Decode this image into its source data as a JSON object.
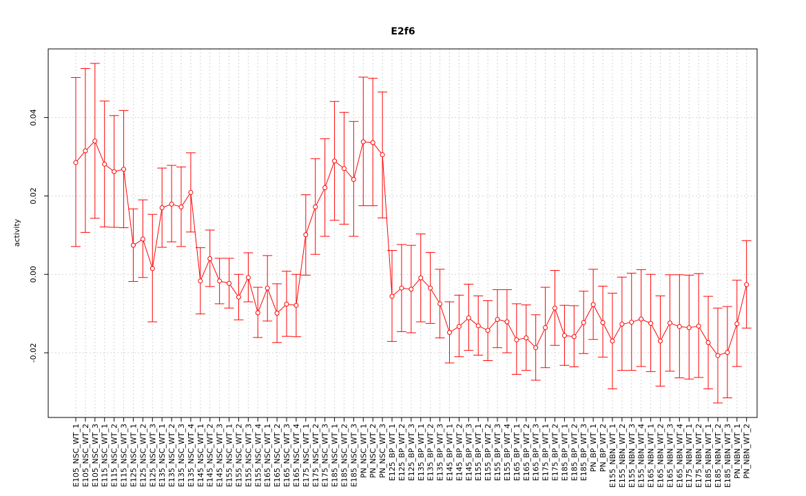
{
  "chart_data": {
    "type": "line",
    "title": "E2f6",
    "ylabel": "activity",
    "xlabel": "",
    "ylim": [
      -0.0365,
      0.0575
    ],
    "yticks": [
      -0.02,
      0.0,
      0.02,
      0.04
    ],
    "ytick_labels": [
      "-0.02",
      "0.00",
      "0.02",
      "0.04"
    ],
    "grid": true,
    "series_color": "#ff0000",
    "grid_color": "#d3d3d3",
    "categories": [
      "E105_NSC_WT_1",
      "E105_NSC_WT_2",
      "E105_NSC_WT_3",
      "E115_NSC_WT_1",
      "E115_NSC_WT_2",
      "E115_NSC_WT_3",
      "E125_NSC_WT_1",
      "E125_NSC_WT_2",
      "E125_NSC_WT_3",
      "E135_NSC_WT_1",
      "E135_NSC_WT_2",
      "E135_NSC_WT_3",
      "E135_NSC_WT_4",
      "E145_NSC_WT_1",
      "E145_NSC_WT_2",
      "E145_NSC_WT_3",
      "E155_NSC_WT_1",
      "E155_NSC_WT_2",
      "E155_NSC_WT_3",
      "E155_NSC_WT_4",
      "E165_NSC_WT_1",
      "E165_NSC_WT_2",
      "E165_NSC_WT_3",
      "E165_NSC_WT_4",
      "E175_NSC_WT_1",
      "E175_NSC_WT_2",
      "E175_NSC_WT_3",
      "E185_NSC_WT_1",
      "E185_NSC_WT_2",
      "E185_NSC_WT_3",
      "PN_NSC_WT_1",
      "PN_NSC_WT_2",
      "PN_NSC_WT_3",
      "E125_BP_WT_1",
      "E125_BP_WT_2",
      "E125_BP_WT_3",
      "E135_BP_WT_1",
      "E135_BP_WT_2",
      "E135_BP_WT_3",
      "E145_BP_WT_1",
      "E145_BP_WT_2",
      "E145_BP_WT_3",
      "E155_BP_WT_1",
      "E155_BP_WT_2",
      "E155_BP_WT_3",
      "E155_BP_WT_4",
      "E165_BP_WT_1",
      "E165_BP_WT_2",
      "E165_BP_WT_3",
      "E175_BP_WT_1",
      "E175_BP_WT_2",
      "E185_BP_WT_1",
      "E185_BP_WT_2",
      "E185_BP_WT_3",
      "PN_BP_WT_1",
      "PN_BP_WT_2",
      "E155_NBN_WT_1",
      "E155_NBN_WT_2",
      "E155_NBN_WT_3",
      "E155_NBN_WT_4",
      "E165_NBN_WT_1",
      "E165_NBN_WT_2",
      "E165_NBN_WT_3",
      "E165_NBN_WT_4",
      "E175_NBN_WT_1",
      "E175_NBN_WT_2",
      "E185_NBN_WT_1",
      "E185_NBN_WT_2",
      "E185_NBN_WT_3",
      "PN_NBN_WT_1",
      "PN_NBN_WT_2"
    ],
    "values": [
      0.0285,
      0.0315,
      0.034,
      0.0281,
      0.0262,
      0.0268,
      0.0074,
      0.009,
      0.0015,
      0.017,
      0.0179,
      0.0172,
      0.0209,
      -0.0017,
      0.004,
      -0.0017,
      -0.0023,
      -0.0058,
      -0.0008,
      -0.0098,
      -0.0035,
      -0.0099,
      -0.0076,
      -0.0079,
      0.0101,
      0.0172,
      0.0221,
      0.0289,
      0.027,
      0.0242,
      0.0338,
      0.0336,
      0.0305,
      -0.0056,
      -0.0035,
      -0.0038,
      -0.0009,
      -0.0035,
      -0.0075,
      -0.0148,
      -0.0133,
      -0.0111,
      -0.0131,
      -0.0143,
      -0.0115,
      -0.0121,
      -0.0167,
      -0.0162,
      -0.0187,
      -0.0136,
      -0.0086,
      -0.0156,
      -0.0159,
      -0.0123,
      -0.0077,
      -0.0123,
      -0.017,
      -0.0127,
      -0.0122,
      -0.0114,
      -0.0125,
      -0.017,
      -0.0124,
      -0.0133,
      -0.0136,
      -0.0132,
      -0.0174,
      -0.0207,
      -0.0199,
      -0.0126,
      -0.0026
    ],
    "upper": [
      0.0502,
      0.0525,
      0.0538,
      0.0442,
      0.0405,
      0.0418,
      0.0167,
      0.019,
      0.0153,
      0.0271,
      0.0278,
      0.0274,
      0.031,
      0.0068,
      0.0113,
      0.0041,
      0.0041,
      0.0,
      0.0055,
      -0.0033,
      0.0048,
      -0.0024,
      0.0008,
      0.0,
      0.0203,
      0.0295,
      0.0346,
      0.0441,
      0.0413,
      0.039,
      0.0503,
      0.05,
      0.0465,
      0.0061,
      0.0076,
      0.0074,
      0.0103,
      0.0056,
      0.0013,
      -0.007,
      -0.0053,
      -0.0025,
      -0.0055,
      -0.0067,
      -0.0039,
      -0.0039,
      -0.0075,
      -0.0078,
      -0.0103,
      -0.0033,
      0.001,
      -0.0079,
      -0.008,
      -0.0043,
      0.0013,
      -0.003,
      -0.0048,
      -0.0007,
      0.0003,
      0.0012,
      0.0,
      -0.0055,
      -0.0001,
      -0.0001,
      -0.0002,
      0.0002,
      -0.0056,
      -0.0086,
      -0.0082,
      -0.0015,
      0.0086
    ],
    "lower": [
      0.0071,
      0.0107,
      0.0143,
      0.0121,
      0.012,
      0.0119,
      -0.0018,
      -0.0008,
      -0.0121,
      0.0069,
      0.0083,
      0.0071,
      0.0108,
      -0.0101,
      -0.0031,
      -0.0075,
      -0.0086,
      -0.0116,
      -0.007,
      -0.0161,
      -0.0119,
      -0.0174,
      -0.0158,
      -0.0159,
      -0.0002,
      0.0051,
      0.0097,
      0.0138,
      0.0128,
      0.0097,
      0.0175,
      0.0175,
      0.0144,
      -0.0171,
      -0.0146,
      -0.0149,
      -0.0121,
      -0.0125,
      -0.0162,
      -0.0226,
      -0.021,
      -0.0194,
      -0.0206,
      -0.022,
      -0.0187,
      -0.02,
      -0.0255,
      -0.0245,
      -0.027,
      -0.0238,
      -0.0181,
      -0.0232,
      -0.0236,
      -0.0202,
      -0.0166,
      -0.0211,
      -0.0292,
      -0.0245,
      -0.0245,
      -0.0235,
      -0.0248,
      -0.0285,
      -0.0247,
      -0.0264,
      -0.0267,
      -0.0263,
      -0.0292,
      -0.0328,
      -0.0315,
      -0.0235,
      -0.0137
    ]
  }
}
